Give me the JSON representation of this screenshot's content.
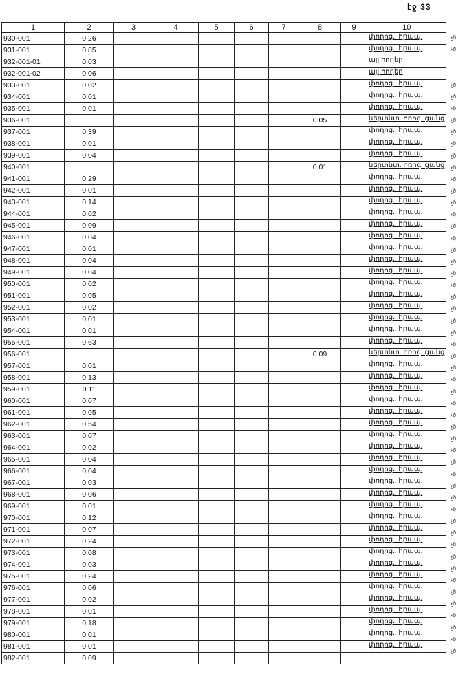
{
  "page_label": "էջ 33",
  "columns": [
    "1",
    "2",
    "3",
    "4",
    "5",
    "6",
    "7",
    "8",
    "9",
    "10"
  ],
  "margin_mark": "չծ",
  "rows": [
    {
      "id": "930-001",
      "c2": "0.26",
      "c8": "",
      "c10": "փողոց., հրապ.",
      "mark": true
    },
    {
      "id": "931-001",
      "c2": "0.85",
      "c8": "",
      "c10": "փողոց., հրապ.",
      "mark": true
    },
    {
      "id": "932-001-01",
      "c2": "0.03",
      "c8": "",
      "c10": "այլ հողեր",
      "mark": false
    },
    {
      "id": "932-001-02",
      "c2": "0.06",
      "c8": "",
      "c10": "այլ հողեր",
      "mark": false
    },
    {
      "id": "933-001",
      "c2": "0.02",
      "c8": "",
      "c10": "փողոց., հրապ.",
      "mark": true
    },
    {
      "id": "934-001",
      "c2": "0.01",
      "c8": "",
      "c10": "փողոց., հրապ.",
      "mark": true
    },
    {
      "id": "935-001",
      "c2": "0.01",
      "c8": "",
      "c10": "փողոց., հրապ.",
      "mark": true
    },
    {
      "id": "936-001",
      "c2": "",
      "c8": "0.05",
      "c10": "ներտնտ. ոռոգ. ցանց",
      "mark": true
    },
    {
      "id": "937-001",
      "c2": "0.39",
      "c8": "",
      "c10": "փողոց., հրապ.",
      "mark": true
    },
    {
      "id": "938-001",
      "c2": "0.01",
      "c8": "",
      "c10": "փողոց., հրապ.",
      "mark": true
    },
    {
      "id": "939-001",
      "c2": "0.04",
      "c8": "",
      "c10": "փողոց., հրապ.",
      "mark": true
    },
    {
      "id": "940-001",
      "c2": "",
      "c8": "0.01",
      "c10": "ներտնտ. ոռոգ. ցանց",
      "mark": true
    },
    {
      "id": "941-001",
      "c2": "0.29",
      "c8": "",
      "c10": "փողոց., հրապ.",
      "mark": true
    },
    {
      "id": "942-001",
      "c2": "0.01",
      "c8": "",
      "c10": "փողոց., հրապ.",
      "mark": true
    },
    {
      "id": "943-001",
      "c2": "0.14",
      "c8": "",
      "c10": "փողոց., հրապ.",
      "mark": true
    },
    {
      "id": "944-001",
      "c2": "0.02",
      "c8": "",
      "c10": "փողոց., հրապ.",
      "mark": true
    },
    {
      "id": "945-001",
      "c2": "0.09",
      "c8": "",
      "c10": "փողոց., հրապ.",
      "mark": true
    },
    {
      "id": "946-001",
      "c2": "0.04",
      "c8": "",
      "c10": "փողոց., հրապ.",
      "mark": true
    },
    {
      "id": "947-001",
      "c2": "0.01",
      "c8": "",
      "c10": "փողոց., հրապ.",
      "mark": true
    },
    {
      "id": "948-001",
      "c2": "0.04",
      "c8": "",
      "c10": "փողոց., հրապ.",
      "mark": true
    },
    {
      "id": "949-001",
      "c2": "0.04",
      "c8": "",
      "c10": "փողոց., հրապ.",
      "mark": true
    },
    {
      "id": "950-001",
      "c2": "0.02",
      "c8": "",
      "c10": "փողոց., հրապ.",
      "mark": true
    },
    {
      "id": "951-001",
      "c2": "0.05",
      "c8": "",
      "c10": "փողոց., հրապ.",
      "mark": true
    },
    {
      "id": "952-001",
      "c2": "0.02",
      "c8": "",
      "c10": "փողոց., հրապ.",
      "mark": true
    },
    {
      "id": "953-001",
      "c2": "0.01",
      "c8": "",
      "c10": "փողոց., հրապ.",
      "mark": true
    },
    {
      "id": "954-001",
      "c2": "0.01",
      "c8": "",
      "c10": "փողոց., հրապ.",
      "mark": true
    },
    {
      "id": "955-001",
      "c2": "0.63",
      "c8": "",
      "c10": "փողոց., հրապ.",
      "mark": true
    },
    {
      "id": "956-001",
      "c2": "",
      "c8": "0.09",
      "c10": "ներտնտ. ոռոգ. ցանց",
      "mark": true
    },
    {
      "id": "957-001",
      "c2": "0.01",
      "c8": "",
      "c10": "փողոց., հրապ.",
      "mark": true
    },
    {
      "id": "958-001",
      "c2": "0.13",
      "c8": "",
      "c10": "փողոց., հրապ.",
      "mark": true
    },
    {
      "id": "959-001",
      "c2": "0.11",
      "c8": "",
      "c10": "փողոց., հրապ.",
      "mark": true
    },
    {
      "id": "960-001",
      "c2": "0.07",
      "c8": "",
      "c10": "փողոց., հրապ.",
      "mark": true
    },
    {
      "id": "961-001",
      "c2": "0.05",
      "c8": "",
      "c10": "փողոց., հրապ.",
      "mark": true
    },
    {
      "id": "962-001",
      "c2": "0.54",
      "c8": "",
      "c10": "փողոց., հրապ.",
      "mark": true
    },
    {
      "id": "963-001",
      "c2": "0.07",
      "c8": "",
      "c10": "փողոց., հրապ.",
      "mark": true
    },
    {
      "id": "964-001",
      "c2": "0.02",
      "c8": "",
      "c10": "փողոց., հրապ.",
      "mark": true
    },
    {
      "id": "965-001",
      "c2": "0.04",
      "c8": "",
      "c10": "փողոց., հրապ.",
      "mark": true
    },
    {
      "id": "966-001",
      "c2": "0.04",
      "c8": "",
      "c10": "փողոց., հրապ.",
      "mark": true
    },
    {
      "id": "967-001",
      "c2": "0.03",
      "c8": "",
      "c10": "փողոց., հրապ.",
      "mark": true
    },
    {
      "id": "968-001",
      "c2": "0.06",
      "c8": "",
      "c10": "փողոց., հրապ.",
      "mark": true
    },
    {
      "id": "969-001",
      "c2": "0.01",
      "c8": "",
      "c10": "փողոց., հրապ.",
      "mark": true
    },
    {
      "id": "970-001",
      "c2": "0.12",
      "c8": "",
      "c10": "փողոց., հրապ.",
      "mark": true
    },
    {
      "id": "971-001",
      "c2": "0.07",
      "c8": "",
      "c10": "փողոց., հրապ.",
      "mark": true
    },
    {
      "id": "972-001",
      "c2": "0.24",
      "c8": "",
      "c10": "փողոց., հրապ.",
      "mark": true
    },
    {
      "id": "973-001",
      "c2": "0.08",
      "c8": "",
      "c10": "փողոց., հրապ.",
      "mark": true
    },
    {
      "id": "974-001",
      "c2": "0.03",
      "c8": "",
      "c10": "փողոց., հրապ.",
      "mark": true
    },
    {
      "id": "975-001",
      "c2": "0.24",
      "c8": "",
      "c10": "փողոց., հրապ.",
      "mark": true
    },
    {
      "id": "976-001",
      "c2": "0.06",
      "c8": "",
      "c10": "փողոց., հրապ.",
      "mark": true
    },
    {
      "id": "977-001",
      "c2": "0.02",
      "c8": "",
      "c10": "փողոց., հրապ.",
      "mark": true
    },
    {
      "id": "978-001",
      "c2": "0.01",
      "c8": "",
      "c10": "փողոց., հրապ.",
      "mark": true
    },
    {
      "id": "979-001",
      "c2": "0.18",
      "c8": "",
      "c10": "փողոց., հրապ.",
      "mark": true
    },
    {
      "id": "980-001",
      "c2": "0.01",
      "c8": "",
      "c10": "փողոց., հրապ.",
      "mark": true
    },
    {
      "id": "981-001",
      "c2": "0.01",
      "c8": "",
      "c10": "փողոց., հրապ.",
      "mark": true
    },
    {
      "id": "982-001",
      "c2": "0.09",
      "c8": "",
      "c10": "",
      "mark": false
    }
  ]
}
